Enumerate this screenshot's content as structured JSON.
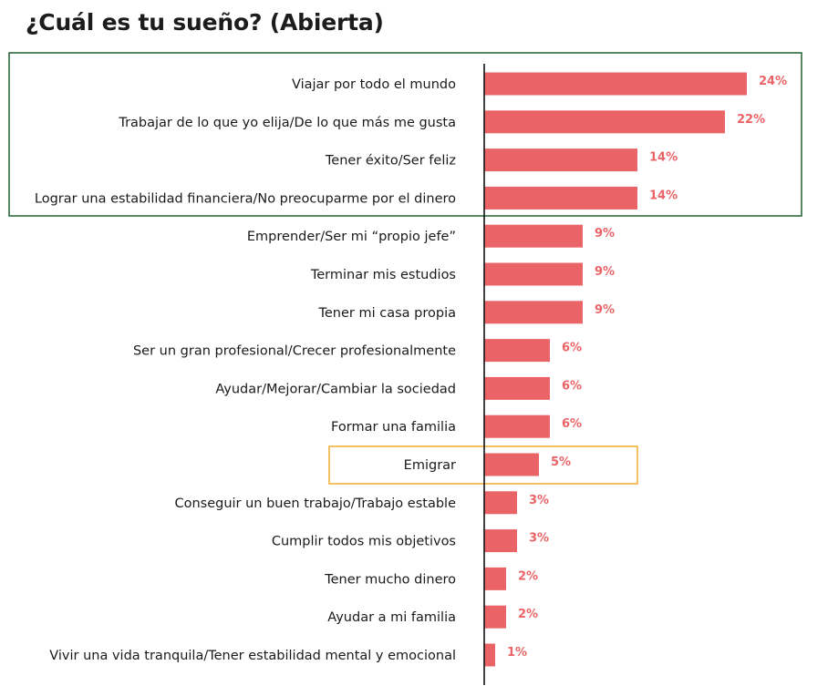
{
  "chart_data": {
    "type": "bar",
    "orientation": "horizontal",
    "title": "¿Cuál es tu sueño? (Abierta)",
    "categories": [
      "Viajar por todo el mundo",
      "Trabajar de lo que yo elija/De lo que más me gusta",
      "Tener éxito/Ser feliz",
      "Lograr una estabilidad financiera/No preocuparme por el dinero",
      "Emprender/Ser mi “propio jefe”",
      "Terminar mis estudios",
      "Tener mi casa propia",
      "Ser un gran profesional/Crecer profesionalmente",
      "Ayudar/Mejorar/Cambiar la sociedad",
      "Formar una familia",
      "Emigrar",
      "Conseguir un buen trabajo/Trabajo estable",
      "Cumplir todos mis objetivos",
      "Tener mucho dinero",
      "Ayudar a mi familia",
      "Vivir una vida tranquila/Tener estabilidad mental y emocional"
    ],
    "values": [
      24,
      22,
      14,
      14,
      9,
      9,
      9,
      6,
      6,
      6,
      5,
      3,
      3,
      2,
      2,
      1
    ],
    "value_labels": [
      "24%",
      "22%",
      "14%",
      "14%",
      "9%",
      "9%",
      "9%",
      "6%",
      "6%",
      "6%",
      "5%",
      "3%",
      "3%",
      "2%",
      "2%",
      "1%"
    ],
    "xlim": [
      0,
      24
    ],
    "grid": false,
    "highlights": [
      {
        "categories": [
          0,
          1,
          2,
          3
        ],
        "color": "#2e6b3e"
      },
      {
        "categories": [
          10
        ],
        "color": "#f0b03c"
      }
    ]
  },
  "colors": {
    "bar": "#ea6467",
    "value_label": "#ea6467",
    "axis": "#111111",
    "title": "#1c1c1c"
  }
}
